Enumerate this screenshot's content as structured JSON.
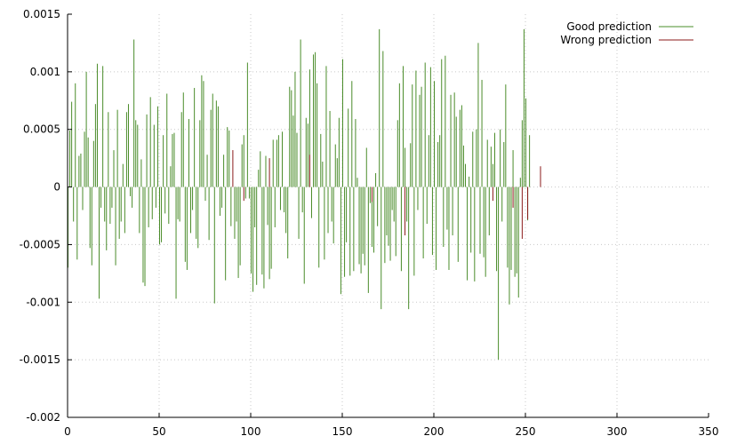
{
  "chart_data": {
    "type": "bar",
    "title": "",
    "xlabel": "",
    "ylabel": "",
    "xlim": [
      0,
      350
    ],
    "ylim": [
      -0.002,
      0.0015
    ],
    "x_ticks": [
      0,
      50,
      100,
      150,
      200,
      250,
      300,
      350
    ],
    "x_tick_labels": [
      "0",
      "50",
      "100",
      "150",
      "200",
      "250",
      "300",
      "350"
    ],
    "y_ticks": [
      -0.002,
      -0.0015,
      -0.001,
      -0.0005,
      0,
      0.0005,
      0.001,
      0.0015
    ],
    "y_tick_labels": [
      "-0.002",
      "-0.0015",
      "-0.001",
      "-0.0005",
      "0",
      "0.0005",
      "0.001",
      "0.0015"
    ],
    "grid": true,
    "legend_position": "top-right",
    "series": [
      {
        "name": "Good prediction",
        "color": "#4a8c2a",
        "points": [
          [
            0,
            -0.0007
          ],
          [
            1,
            0.00049
          ],
          [
            2,
            0.00074
          ],
          [
            3,
            -0.0003
          ],
          [
            4,
            0.0009
          ],
          [
            5,
            -0.00063
          ],
          [
            6,
            0.00027
          ],
          [
            7,
            0.00029
          ],
          [
            8,
            -0.0002
          ],
          [
            9,
            0.00048
          ],
          [
            10,
            0.001
          ],
          [
            11,
            0.00043
          ],
          [
            12,
            -0.00053
          ],
          [
            13,
            -0.00068
          ],
          [
            14,
            0.0004
          ],
          [
            15,
            0.00072
          ],
          [
            16,
            0.00107
          ],
          [
            17,
            -0.00097
          ],
          [
            18,
            -0.00018
          ],
          [
            19,
            0.00105
          ],
          [
            20,
            -0.0003
          ],
          [
            21,
            -0.00055
          ],
          [
            22,
            0.00065
          ],
          [
            23,
            -0.00032
          ],
          [
            24,
            -0.00018
          ],
          [
            25,
            0.00032
          ],
          [
            26,
            -0.00068
          ],
          [
            27,
            0.00067
          ],
          [
            28,
            -0.00045
          ],
          [
            29,
            -0.0003
          ],
          [
            30,
            0.0002
          ],
          [
            31,
            -0.0004
          ],
          [
            32,
            0.00065
          ],
          [
            33,
            0.00072
          ],
          [
            34,
            -8e-05
          ],
          [
            35,
            -0.00018
          ],
          [
            36,
            0.00128
          ],
          [
            37,
            0.00058
          ],
          [
            38,
            0.00054
          ],
          [
            39,
            -0.0004
          ],
          [
            40,
            0.00024
          ],
          [
            41,
            -0.00083
          ],
          [
            42,
            -0.00086
          ],
          [
            43,
            0.00063
          ],
          [
            44,
            -0.00035
          ],
          [
            45,
            0.00078
          ],
          [
            46,
            -0.00028
          ],
          [
            47,
            0.00054
          ],
          [
            48,
            -0.00018
          ],
          [
            49,
            0.0007
          ],
          [
            50,
            -0.0005
          ],
          [
            51,
            -0.00048
          ],
          [
            52,
            0.00045
          ],
          [
            53,
            -0.00023
          ],
          [
            54,
            0.00081
          ],
          [
            55,
            -0.00032
          ],
          [
            56,
            0.00018
          ],
          [
            57,
            0.00046
          ],
          [
            58,
            0.00047
          ],
          [
            59,
            -0.00097
          ],
          [
            60,
            -0.00028
          ],
          [
            61,
            -0.0003
          ],
          [
            62,
            0.00065
          ],
          [
            63,
            0.00082
          ],
          [
            64,
            -0.00065
          ],
          [
            65,
            -0.00072
          ],
          [
            66,
            0.00059
          ],
          [
            67,
            -0.0004
          ],
          [
            68,
            -0.0002
          ],
          [
            69,
            0.00086
          ],
          [
            70,
            -0.00045
          ],
          [
            71,
            -0.00053
          ],
          [
            72,
            0.00058
          ],
          [
            73,
            0.00097
          ],
          [
            74,
            0.00092
          ],
          [
            75,
            -0.00012
          ],
          [
            76,
            0.00028
          ],
          [
            77,
            -0.00046
          ],
          [
            78,
            0.00067
          ],
          [
            79,
            0.00081
          ],
          [
            80,
            -0.00101
          ],
          [
            81,
            0.00075
          ],
          [
            82,
            0.0007
          ],
          [
            83,
            -0.00025
          ],
          [
            84,
            -0.00018
          ],
          [
            85,
            0.00028
          ],
          [
            86,
            -0.00081
          ],
          [
            87,
            0.00052
          ],
          [
            88,
            0.00049
          ],
          [
            89,
            -0.00034
          ],
          [
            91,
            -0.00045
          ],
          [
            92,
            -0.0003
          ],
          [
            93,
            -0.00079
          ],
          [
            94,
            -0.00068
          ],
          [
            95,
            0.00037
          ],
          [
            96,
            0.00045
          ],
          [
            97,
            -0.0001
          ],
          [
            98,
            0.00108
          ],
          [
            99,
            -0.0001
          ],
          [
            100,
            -0.00075
          ],
          [
            101,
            -0.00091
          ],
          [
            102,
            -0.00035
          ],
          [
            103,
            -0.00085
          ],
          [
            104,
            0.00015
          ],
          [
            105,
            0.00031
          ],
          [
            106,
            -0.00076
          ],
          [
            107,
            -0.00088
          ],
          [
            108,
            0.00027
          ],
          [
            109,
            -0.00033
          ],
          [
            110,
            -0.0008
          ],
          [
            111,
            -0.00071
          ],
          [
            112,
            0.00041
          ],
          [
            113,
            -0.00035
          ],
          [
            114,
            0.00041
          ],
          [
            115,
            0.00045
          ],
          [
            116,
            -0.0002
          ],
          [
            117,
            0.00048
          ],
          [
            118,
            -0.00022
          ],
          [
            119,
            -0.0004
          ],
          [
            120,
            -0.00062
          ],
          [
            121,
            0.00087
          ],
          [
            122,
            0.00084
          ],
          [
            123,
            0.00062
          ],
          [
            124,
            0.001
          ],
          [
            125,
            0.00047
          ],
          [
            126,
            -0.00045
          ],
          [
            127,
            0.00128
          ],
          [
            128,
            -0.00022
          ],
          [
            129,
            -0.00084
          ],
          [
            130,
            0.0006
          ],
          [
            131,
            0.00055
          ],
          [
            132,
            0.00102
          ],
          [
            133,
            -0.00027
          ],
          [
            134,
            0.00115
          ],
          [
            135,
            0.00117
          ],
          [
            136,
            0.0009
          ],
          [
            137,
            -0.0007
          ],
          [
            138,
            0.00046
          ],
          [
            139,
            0.00022
          ],
          [
            140,
            -0.00063
          ],
          [
            141,
            0.00105
          ],
          [
            142,
            -0.0004
          ],
          [
            143,
            0.00066
          ],
          [
            144,
            -0.0003
          ],
          [
            145,
            -0.00049
          ],
          [
            146,
            0.00037
          ],
          [
            147,
            0.00025
          ],
          [
            148,
            0.0006
          ],
          [
            149,
            -0.00093
          ],
          [
            150,
            0.00111
          ],
          [
            151,
            -0.00078
          ],
          [
            152,
            -0.00048
          ],
          [
            153,
            0.00068
          ],
          [
            154,
            -0.00077
          ],
          [
            155,
            0.00092
          ],
          [
            156,
            -0.00073
          ],
          [
            157,
            0.00059
          ],
          [
            158,
            8e-05
          ],
          [
            159,
            -0.00067
          ],
          [
            160,
            -0.00075
          ],
          [
            161,
            -0.00058
          ],
          [
            162,
            -0.00068
          ],
          [
            163,
            0.00034
          ],
          [
            164,
            -0.00092
          ],
          [
            165,
            -0.00014
          ],
          [
            166,
            -0.00052
          ],
          [
            167,
            -0.00057
          ],
          [
            168,
            0.00012
          ],
          [
            169,
            -0.00034
          ],
          [
            170,
            0.00137
          ],
          [
            171,
            -0.00106
          ],
          [
            172,
            0.00118
          ],
          [
            173,
            -0.00066
          ],
          [
            174,
            -0.00042
          ],
          [
            175,
            -0.00051
          ],
          [
            176,
            -0.00064
          ],
          [
            177,
            -0.0002
          ],
          [
            178,
            -0.0003
          ],
          [
            179,
            -0.0006
          ],
          [
            180,
            0.00058
          ],
          [
            181,
            0.0009
          ],
          [
            182,
            -0.00073
          ],
          [
            183,
            0.00105
          ],
          [
            184,
            0.00034
          ],
          [
            185,
            -0.0003
          ],
          [
            186,
            -0.00106
          ],
          [
            187,
            0.00038
          ],
          [
            188,
            0.00089
          ],
          [
            189,
            -0.00077
          ],
          [
            190,
            0.00101
          ],
          [
            191,
            -0.0002
          ],
          [
            192,
            0.0008
          ],
          [
            193,
            0.00087
          ],
          [
            194,
            -0.00062
          ],
          [
            195,
            0.00108
          ],
          [
            196,
            -0.00032
          ],
          [
            197,
            0.00045
          ],
          [
            198,
            0.00104
          ],
          [
            199,
            -0.00059
          ],
          [
            200,
            0.00092
          ],
          [
            201,
            -0.00072
          ],
          [
            202,
            0.00039
          ],
          [
            203,
            0.00045
          ],
          [
            204,
            0.00111
          ],
          [
            205,
            -0.00052
          ],
          [
            206,
            0.00114
          ],
          [
            207,
            -0.00037
          ],
          [
            208,
            -0.00072
          ],
          [
            209,
            0.0008
          ],
          [
            210,
            -0.00042
          ],
          [
            211,
            0.00082
          ],
          [
            212,
            0.00061
          ],
          [
            213,
            -0.00065
          ],
          [
            214,
            0.00067
          ],
          [
            215,
            0.00071
          ],
          [
            216,
            0.00036
          ],
          [
            217,
            0.0002
          ],
          [
            218,
            -0.00081
          ],
          [
            219,
            9e-05
          ],
          [
            220,
            -0.00057
          ],
          [
            221,
            0.00048
          ],
          [
            222,
            -0.00082
          ],
          [
            223,
            0.0005
          ],
          [
            224,
            0.00125
          ],
          [
            225,
            -0.00058
          ],
          [
            226,
            0.00093
          ],
          [
            227,
            -0.00061
          ],
          [
            228,
            -0.00078
          ],
          [
            229,
            0.00041
          ],
          [
            230,
            -0.00042
          ],
          [
            231,
            0.00035
          ],
          [
            232,
            0.0002
          ],
          [
            233,
            0.00047
          ],
          [
            234,
            -0.00073
          ],
          [
            235,
            -0.0015
          ],
          [
            236,
            0.0005
          ],
          [
            237,
            -0.0003
          ],
          [
            238,
            0.00039
          ],
          [
            239,
            0.00089
          ],
          [
            240,
            -0.0007
          ],
          [
            241,
            -0.00102
          ],
          [
            242,
            -0.00072
          ],
          [
            243,
            0.00032
          ],
          [
            244,
            -0.00078
          ],
          [
            245,
            -0.00075
          ],
          [
            246,
            -0.00096
          ],
          [
            247,
            8e-05
          ],
          [
            248,
            0.00058
          ],
          [
            249,
            0.00137
          ],
          [
            250,
            0.00077
          ],
          [
            251,
            -0.00029
          ],
          [
            252,
            0.00045
          ]
        ]
      },
      {
        "name": "Wrong prediction",
        "color": "#8b1a1a",
        "points": [
          [
            90,
            0.00032
          ],
          [
            96,
            -0.00012
          ],
          [
            110,
            0.00025
          ],
          [
            132,
            0.00028
          ],
          [
            166,
            -0.00013
          ],
          [
            184,
            -0.00042
          ],
          [
            232,
            -0.00012
          ],
          [
            243,
            -0.00018
          ],
          [
            248,
            -0.00045
          ],
          [
            251,
            -0.00028
          ],
          [
            258,
            0.00018
          ]
        ]
      }
    ]
  }
}
